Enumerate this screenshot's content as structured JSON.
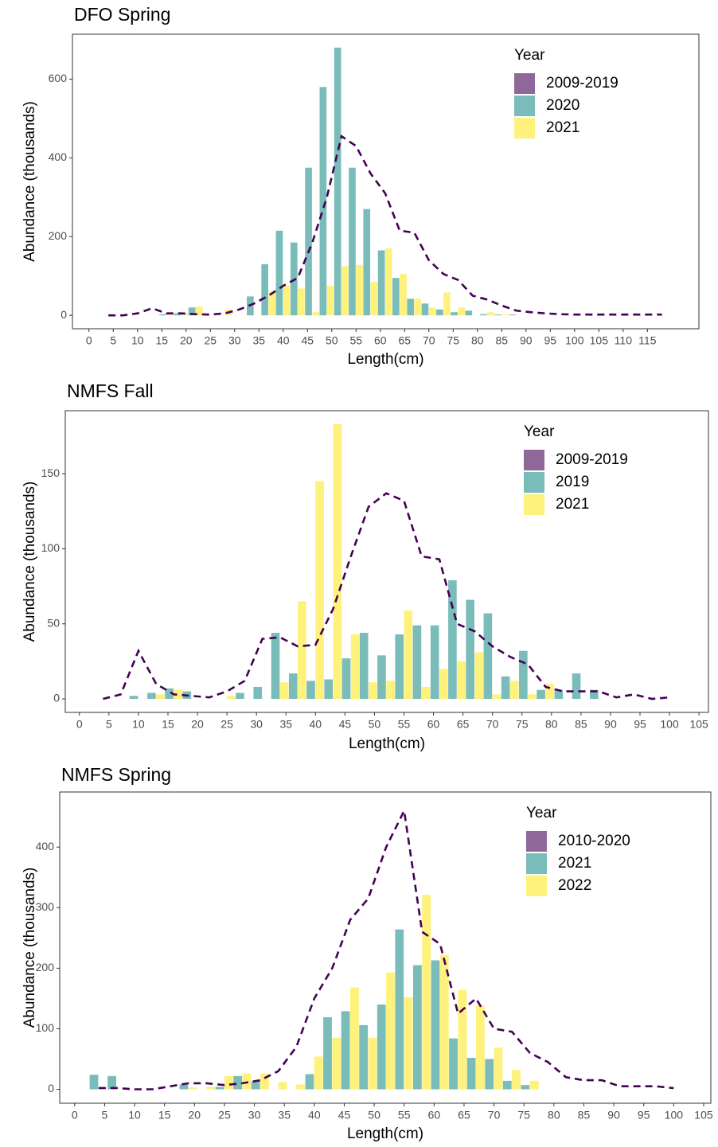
{
  "chart_data": [
    {
      "type": "bar",
      "title": "DFO Spring",
      "x_label": "Length(cm)",
      "y_label": "Abundance (thousands)",
      "legend_title": "Year",
      "legend": "top-right",
      "x": [
        4,
        7,
        10,
        13,
        16,
        19,
        22,
        25,
        28,
        31,
        34,
        37,
        40,
        43,
        46,
        49,
        52,
        55,
        58,
        61,
        64,
        67,
        70,
        73,
        76,
        79,
        82,
        85,
        88,
        91,
        94,
        97,
        100,
        103,
        106,
        109,
        112,
        115,
        118
      ],
      "series": [
        {
          "name": "2009-2019",
          "color": "#440154",
          "mark": "line",
          "values": [
            0,
            0,
            5,
            18,
            5,
            5,
            3,
            2,
            5,
            15,
            30,
            50,
            75,
            95,
            185,
            300,
            455,
            430,
            360,
            310,
            215,
            210,
            140,
            105,
            90,
            50,
            40,
            25,
            12,
            8,
            5,
            3,
            2,
            2,
            2,
            2,
            2,
            2,
            2
          ]
        },
        {
          "name": "2020",
          "color": "#21908c",
          "values": [
            0,
            0,
            0,
            0,
            3,
            5,
            20,
            0,
            0,
            0,
            48,
            130,
            215,
            185,
            375,
            580,
            680,
            375,
            270,
            165,
            95,
            42,
            30,
            15,
            8,
            12,
            3,
            2,
            2,
            0,
            0,
            0,
            0,
            0,
            0,
            0,
            0,
            0,
            0
          ]
        },
        {
          "name": "2021",
          "color": "#fde725",
          "values": [
            0,
            0,
            0,
            0,
            5,
            6,
            22,
            0,
            15,
            0,
            0,
            60,
            75,
            68,
            8,
            75,
            125,
            128,
            85,
            170,
            105,
            42,
            20,
            58,
            20,
            0,
            8,
            2,
            0,
            0,
            0,
            0,
            0,
            0,
            0,
            0,
            0,
            0,
            0
          ]
        }
      ],
      "xlim": [
        -3.4,
        125.6
      ],
      "xticks": [
        0,
        5,
        10,
        15,
        20,
        25,
        30,
        35,
        40,
        45,
        50,
        55,
        60,
        65,
        70,
        75,
        80,
        85,
        90,
        95,
        100,
        105,
        110,
        115
      ],
      "ylim": [
        -34,
        714
      ],
      "yticks": [
        0,
        200,
        400,
        600
      ]
    },
    {
      "type": "bar",
      "title": "NMFS Fall",
      "x_label": "Length(cm)",
      "y_label": "Abundance (thousands)",
      "legend_title": "Year",
      "legend": "top-right",
      "x": [
        4,
        7,
        10,
        13,
        16,
        19,
        22,
        25,
        28,
        31,
        34,
        37,
        40,
        43,
        46,
        49,
        52,
        55,
        58,
        61,
        64,
        67,
        70,
        73,
        76,
        79,
        82,
        85,
        88,
        91,
        94,
        97,
        100
      ],
      "series": [
        {
          "name": "2009-2019",
          "color": "#440154",
          "mark": "line",
          "values": [
            0,
            3,
            32,
            10,
            3,
            2,
            1,
            5,
            12,
            40,
            41,
            35,
            36,
            60,
            95,
            128,
            137,
            132,
            95,
            93,
            50,
            45,
            35,
            28,
            23,
            8,
            5,
            5,
            5,
            1,
            3,
            0,
            1
          ]
        },
        {
          "name": "2019",
          "color": "#21908c",
          "values": [
            0,
            0,
            2,
            4,
            7,
            5,
            0,
            0,
            4,
            8,
            44,
            17,
            12,
            13,
            27,
            44,
            29,
            43,
            49,
            49,
            79,
            66,
            57,
            15,
            32,
            6,
            6,
            17,
            6,
            0,
            0,
            0,
            0
          ]
        },
        {
          "name": "2021",
          "color": "#fde725",
          "values": [
            0,
            0,
            0,
            3,
            6,
            0,
            0,
            2,
            0,
            0,
            11,
            65,
            145,
            183,
            43,
            11,
            12,
            59,
            8,
            20,
            25,
            31,
            3,
            12,
            3,
            10,
            0,
            0,
            0,
            0,
            0,
            0,
            0
          ]
        }
      ],
      "xlim": [
        -2.4,
        106.6
      ],
      "xticks": [
        0,
        5,
        10,
        15,
        20,
        25,
        30,
        35,
        40,
        45,
        50,
        55,
        60,
        65,
        70,
        75,
        80,
        85,
        90,
        95,
        100,
        105
      ],
      "ylim": [
        -9,
        192
      ],
      "yticks": [
        0,
        50,
        100,
        150
      ]
    },
    {
      "type": "bar",
      "title": "NMFS Spring",
      "x_label": "Length(cm)",
      "y_label": "Abundance (thousands)",
      "legend_title": "Year",
      "legend": "top-right",
      "x": [
        4,
        7,
        10,
        13,
        16,
        19,
        22,
        25,
        28,
        31,
        34,
        37,
        40,
        43,
        46,
        49,
        52,
        55,
        58,
        61,
        64,
        67,
        70,
        73,
        76,
        79,
        82,
        85,
        88,
        91,
        94,
        97,
        100
      ],
      "series": [
        {
          "name": "2010-2020",
          "color": "#440154",
          "mark": "line",
          "values": [
            2,
            2,
            0,
            0,
            5,
            10,
            10,
            7,
            10,
            15,
            30,
            70,
            150,
            200,
            280,
            315,
            400,
            460,
            260,
            240,
            125,
            150,
            100,
            95,
            60,
            45,
            20,
            15,
            15,
            5,
            5,
            5,
            2
          ]
        },
        {
          "name": "2021",
          "color": "#21908c",
          "values": [
            24,
            22,
            0,
            0,
            0,
            8,
            0,
            4,
            22,
            14,
            0,
            0,
            25,
            119,
            129,
            106,
            140,
            264,
            205,
            213,
            84,
            52,
            50,
            14,
            7,
            0,
            0,
            0,
            0,
            0,
            0,
            0,
            0
          ]
        },
        {
          "name": "2022",
          "color": "#fde725",
          "values": [
            0,
            0,
            0,
            0,
            0,
            3,
            4,
            22,
            26,
            26,
            12,
            8,
            54,
            85,
            168,
            85,
            193,
            152,
            321,
            222,
            164,
            138,
            69,
            32,
            14,
            0,
            0,
            0,
            0,
            0,
            0,
            0,
            0
          ]
        }
      ],
      "xlim": [
        -2.5,
        106.2
      ],
      "xticks": [
        0,
        5,
        10,
        15,
        20,
        25,
        30,
        35,
        40,
        45,
        50,
        55,
        60,
        65,
        70,
        75,
        80,
        85,
        90,
        95,
        100,
        105
      ],
      "ylim": [
        -23,
        491
      ],
      "yticks": [
        0,
        100,
        200,
        300,
        400
      ]
    }
  ]
}
